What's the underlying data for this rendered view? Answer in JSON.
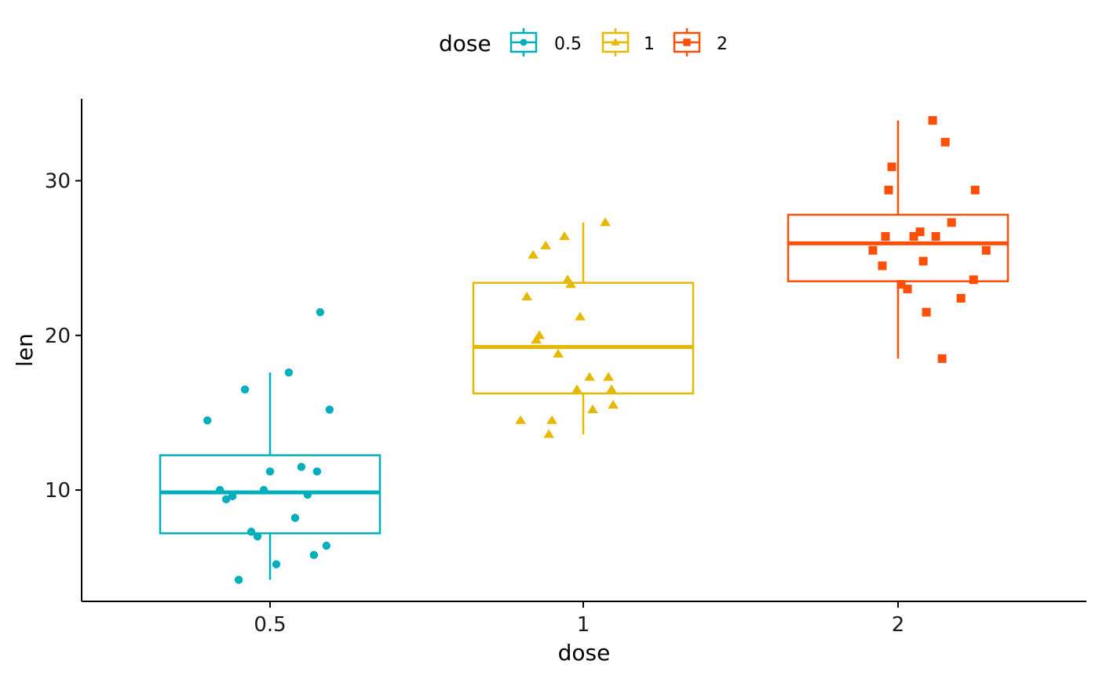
{
  "chart_data": {
    "type": "box",
    "xlabel": "dose",
    "ylabel": "len",
    "ylim": [
      2.8,
      35.3
    ],
    "yticks": [
      10,
      20,
      30
    ],
    "categories": [
      "0.5",
      "1",
      "2"
    ],
    "legend": {
      "title": "dose",
      "position": "top",
      "entries": [
        "0.5",
        "1",
        "2"
      ]
    },
    "grid": false,
    "series": [
      {
        "name": "0.5",
        "color": "#00AFBB",
        "marker": "circle",
        "box": {
          "whisker_low": 4.2,
          "q1": 7.2,
          "median": 9.85,
          "q3": 12.25,
          "whisker_high": 17.6
        },
        "points": [
          {
            "x": 0.4,
            "y": 14.5
          },
          {
            "x": 0.42,
            "y": 10.0
          },
          {
            "x": 0.43,
            "y": 9.4
          },
          {
            "x": 0.44,
            "y": 9.6
          },
          {
            "x": 0.45,
            "y": 4.2
          },
          {
            "x": 0.46,
            "y": 16.5
          },
          {
            "x": 0.47,
            "y": 7.3
          },
          {
            "x": 0.48,
            "y": 7.0
          },
          {
            "x": 0.49,
            "y": 10.0
          },
          {
            "x": 0.5,
            "y": 11.2
          },
          {
            "x": 0.51,
            "y": 5.2
          },
          {
            "x": 0.53,
            "y": 17.6
          },
          {
            "x": 0.54,
            "y": 8.2
          },
          {
            "x": 0.55,
            "y": 11.5
          },
          {
            "x": 0.56,
            "y": 9.7
          },
          {
            "x": 0.57,
            "y": 5.8
          },
          {
            "x": 0.575,
            "y": 11.2
          },
          {
            "x": 0.58,
            "y": 21.5
          },
          {
            "x": 0.59,
            "y": 6.4
          },
          {
            "x": 0.595,
            "y": 15.2
          }
        ]
      },
      {
        "name": "1",
        "color": "#E7B800",
        "marker": "triangle",
        "box": {
          "whisker_low": 13.6,
          "q1": 16.25,
          "median": 19.25,
          "q3": 23.4,
          "whisker_high": 27.3
        },
        "points": [
          {
            "x": 0.9,
            "y": 14.5
          },
          {
            "x": 0.91,
            "y": 22.5
          },
          {
            "x": 0.92,
            "y": 25.2
          },
          {
            "x": 0.925,
            "y": 19.7
          },
          {
            "x": 0.93,
            "y": 20.0
          },
          {
            "x": 0.94,
            "y": 25.8
          },
          {
            "x": 0.945,
            "y": 13.6
          },
          {
            "x": 0.95,
            "y": 14.5
          },
          {
            "x": 0.96,
            "y": 18.8
          },
          {
            "x": 0.97,
            "y": 26.4
          },
          {
            "x": 0.975,
            "y": 23.6
          },
          {
            "x": 0.98,
            "y": 23.3
          },
          {
            "x": 0.99,
            "y": 16.5
          },
          {
            "x": 0.995,
            "y": 21.2
          },
          {
            "x": 1.02,
            "y": 17.3
          },
          {
            "x": 1.03,
            "y": 15.2
          },
          {
            "x": 1.07,
            "y": 27.3
          },
          {
            "x": 1.08,
            "y": 17.3
          },
          {
            "x": 1.09,
            "y": 16.5
          },
          {
            "x": 1.095,
            "y": 15.5
          }
        ]
      },
      {
        "name": "2",
        "color": "#FC4E07",
        "marker": "square",
        "box": {
          "whisker_low": 18.5,
          "q1": 23.5,
          "median": 25.95,
          "q3": 27.8,
          "whisker_high": 33.9
        },
        "points": [
          {
            "x": 1.92,
            "y": 25.5
          },
          {
            "x": 1.95,
            "y": 24.5
          },
          {
            "x": 1.96,
            "y": 26.4
          },
          {
            "x": 1.97,
            "y": 29.4
          },
          {
            "x": 1.98,
            "y": 30.9
          },
          {
            "x": 2.01,
            "y": 23.3
          },
          {
            "x": 2.03,
            "y": 23.0
          },
          {
            "x": 2.05,
            "y": 26.4
          },
          {
            "x": 2.07,
            "y": 26.7
          },
          {
            "x": 2.08,
            "y": 24.8
          },
          {
            "x": 2.09,
            "y": 21.5
          },
          {
            "x": 2.11,
            "y": 33.9
          },
          {
            "x": 2.12,
            "y": 26.4
          },
          {
            "x": 2.14,
            "y": 18.5
          },
          {
            "x": 2.15,
            "y": 32.5
          },
          {
            "x": 2.17,
            "y": 27.3
          },
          {
            "x": 2.2,
            "y": 22.4
          },
          {
            "x": 2.24,
            "y": 23.6
          },
          {
            "x": 2.245,
            "y": 29.4
          },
          {
            "x": 2.28,
            "y": 25.5
          }
        ]
      }
    ]
  }
}
